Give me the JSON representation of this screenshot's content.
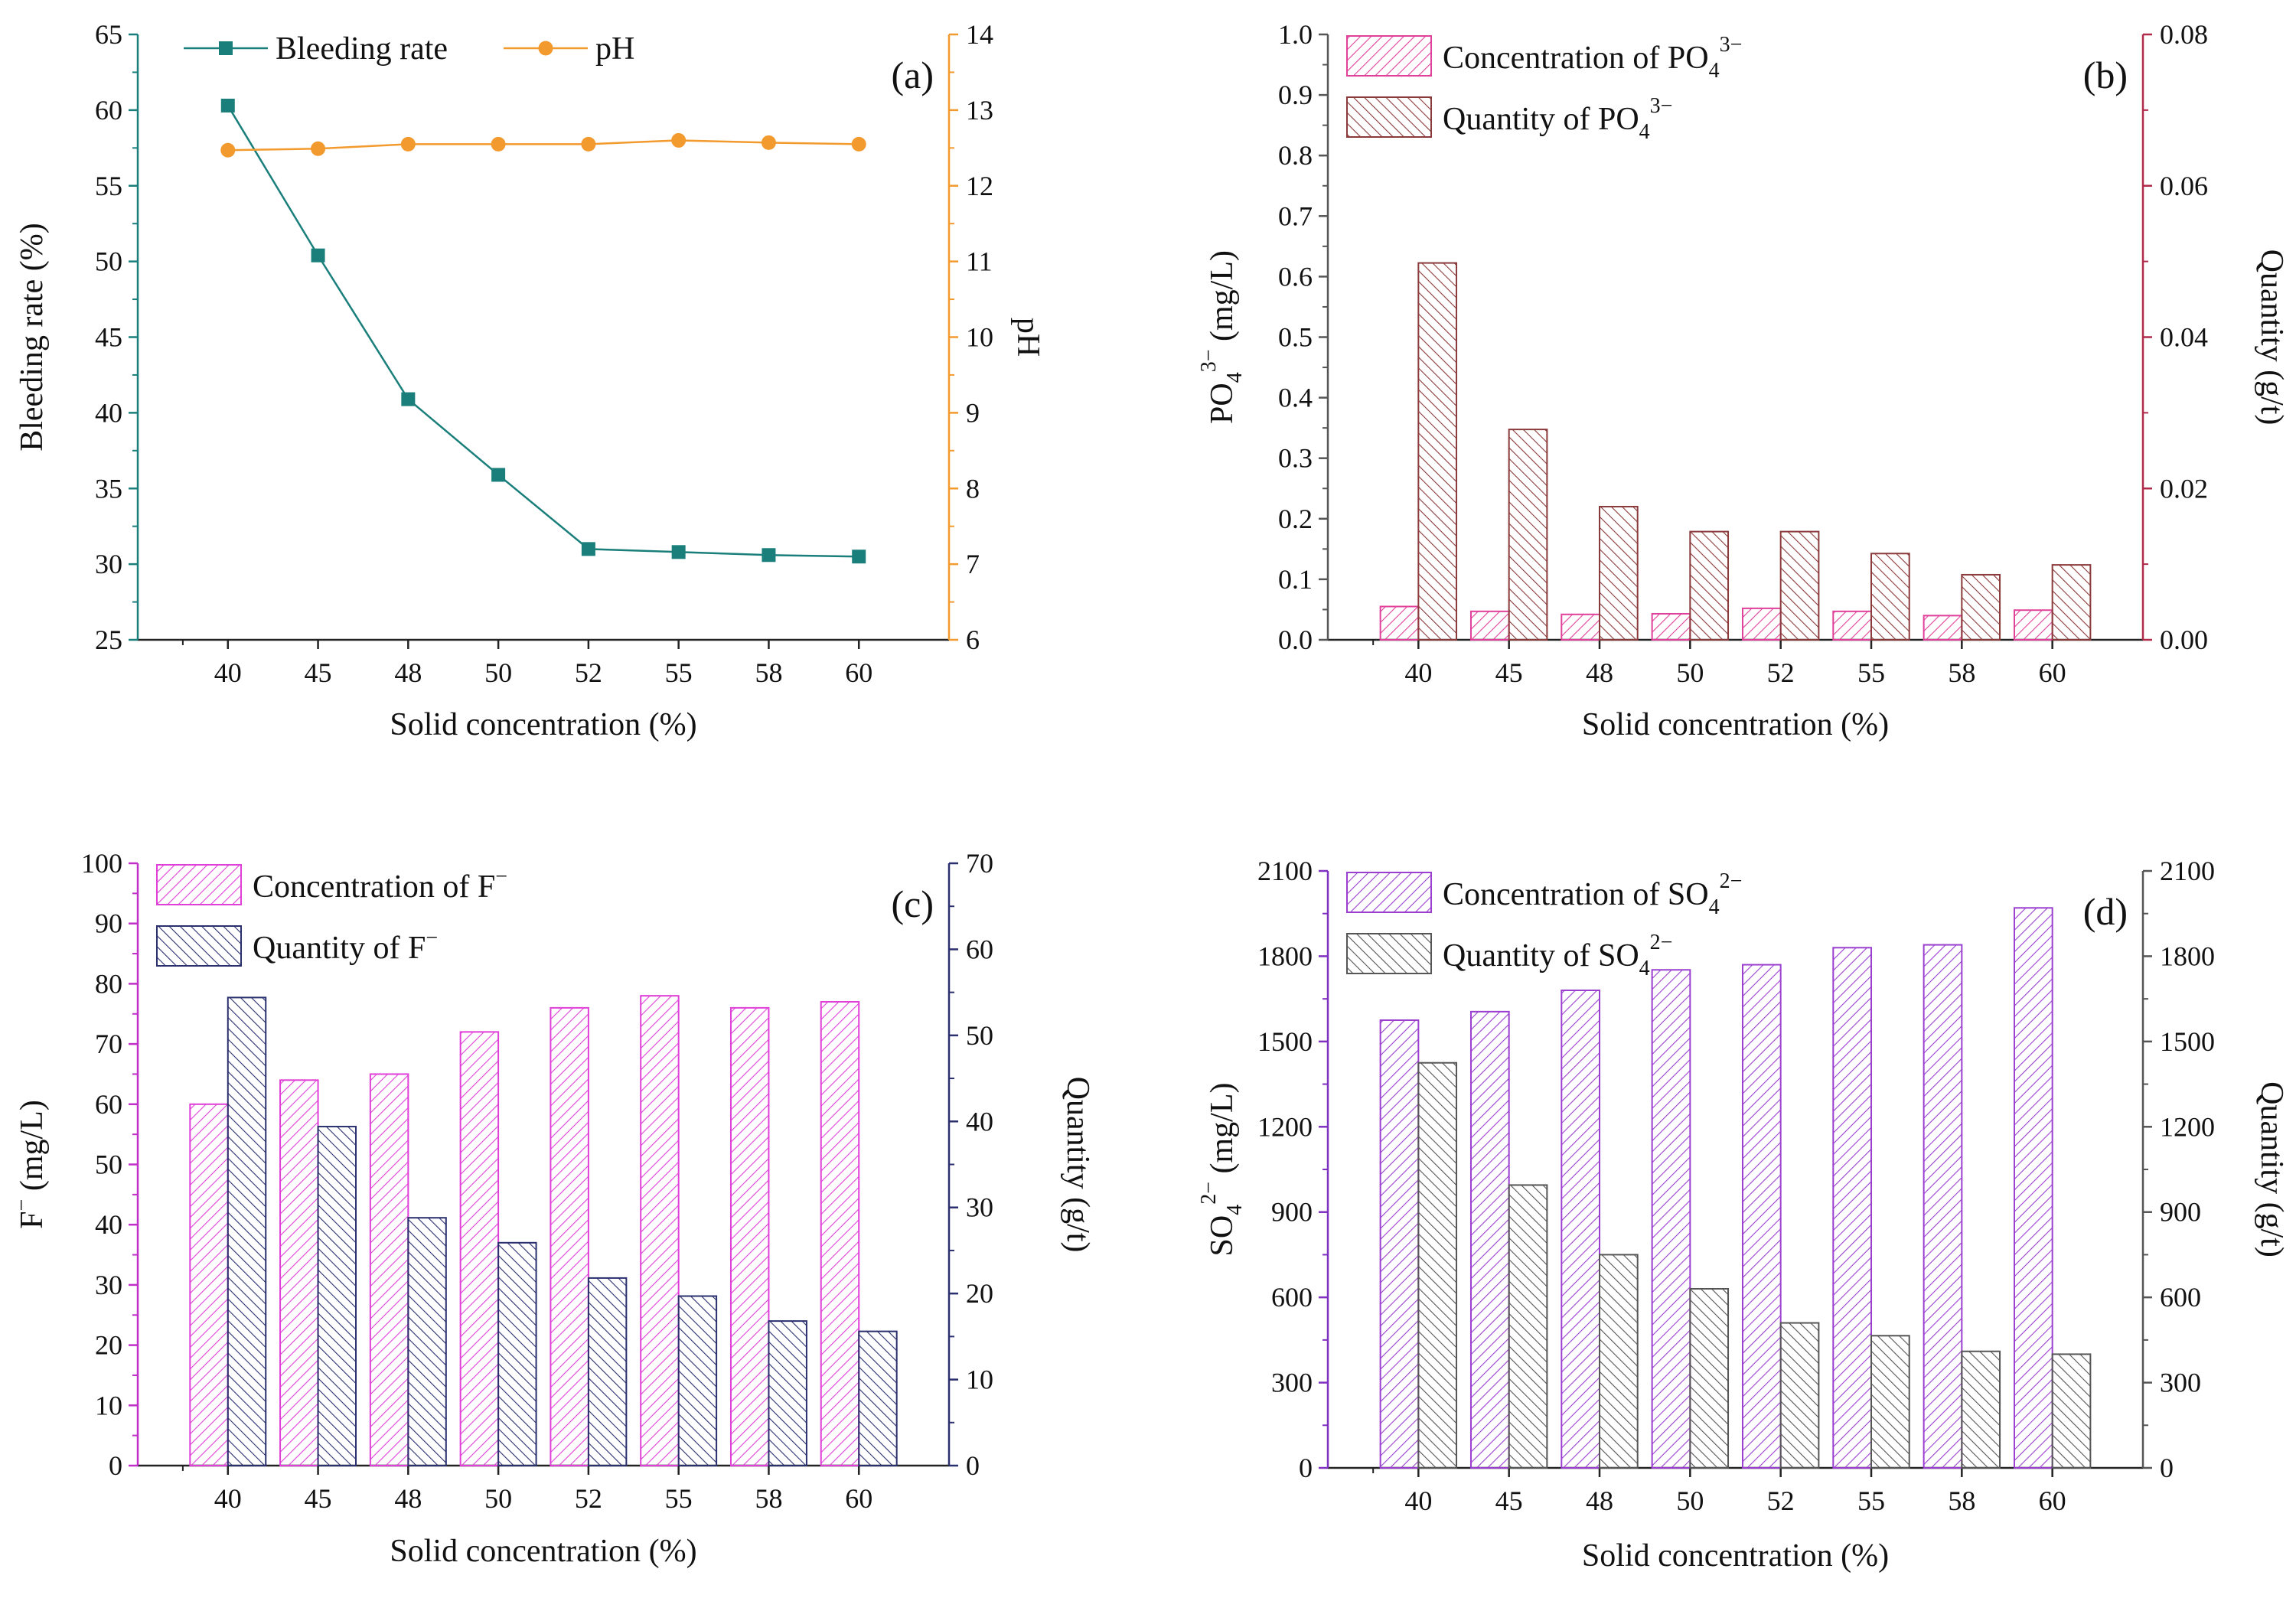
{
  "figure": {
    "x_title": "Solid concentration (%)"
  },
  "chart_data": [
    {
      "panel": "(a)",
      "type": "line",
      "categories": [
        "40",
        "45",
        "48",
        "50",
        "52",
        "55",
        "58",
        "60"
      ],
      "series": [
        {
          "name": "Bleeding rate",
          "axis": "left",
          "color": "#1a7f7a",
          "marker": "square",
          "values": [
            60.3,
            50.4,
            40.9,
            35.9,
            31.0,
            30.8,
            30.6,
            30.5
          ]
        },
        {
          "name": "pH",
          "axis": "right",
          "color": "#f39a2e",
          "marker": "circle",
          "values": [
            12.47,
            12.49,
            12.55,
            12.55,
            12.55,
            12.6,
            12.57,
            12.55
          ]
        }
      ],
      "xlabel": "Solid concentration (%)",
      "ylabel": "Bleeding rate (%)",
      "y2label": "pH",
      "ylim": [
        25,
        65
      ],
      "yticks": [
        "25",
        "30",
        "35",
        "40",
        "45",
        "50",
        "55",
        "60",
        "65"
      ],
      "y2lim": [
        6,
        14
      ],
      "y2ticks": [
        "6",
        "7",
        "8",
        "9",
        "10",
        "11",
        "12",
        "13",
        "14"
      ],
      "legend": "top"
    },
    {
      "panel": "(b)",
      "type": "bar",
      "categories": [
        "40",
        "45",
        "48",
        "50",
        "52",
        "55",
        "58",
        "60"
      ],
      "series": [
        {
          "name": "Concentration of PO4 3−",
          "legend_base": "Concentration of PO",
          "legend_sub": "4",
          "legend_sup": "3−",
          "axis": "left",
          "color": "#e0409a",
          "values": [
            0.055,
            0.047,
            0.042,
            0.043,
            0.052,
            0.047,
            0.04,
            0.049
          ]
        },
        {
          "name": "Quantity of PO4 3−",
          "legend_base": "Quantity of PO",
          "legend_sub": "4",
          "legend_sup": "3−",
          "axis": "right",
          "color": "#8a3a3a",
          "values": [
            0.0498,
            0.0278,
            0.0176,
            0.0143,
            0.0143,
            0.0114,
            0.0086,
            0.0099
          ]
        }
      ],
      "xlabel": "Solid concentration (%)",
      "ylabel": "PO4 3− (mg/L)",
      "ylabel_base": "PO",
      "ylabel_sub": "4",
      "ylabel_sup": "3−",
      "ylabel_unit": " (mg/L)",
      "y2label": "Quantity (g/t)",
      "ylim": [
        0,
        1.0
      ],
      "yticks": [
        "0.0",
        "0.1",
        "0.2",
        "0.3",
        "0.4",
        "0.5",
        "0.6",
        "0.7",
        "0.8",
        "0.9",
        "1.0"
      ],
      "y2lim": [
        0,
        0.08
      ],
      "y2ticks": [
        "0.00",
        "0.02",
        "0.04",
        "0.06",
        "0.08"
      ],
      "legend": "top-left"
    },
    {
      "panel": "(c)",
      "type": "bar",
      "categories": [
        "40",
        "45",
        "48",
        "50",
        "52",
        "55",
        "58",
        "60"
      ],
      "series": [
        {
          "name": "Concentration of F−",
          "legend_base": "Concentration of F",
          "legend_sub": "",
          "legend_sup": "−",
          "axis": "left",
          "color": "#e040d8",
          "values": [
            60,
            64,
            65,
            72,
            76,
            78,
            76,
            77
          ]
        },
        {
          "name": "Quantity of F−",
          "legend_base": "Quantity of F",
          "legend_sub": "",
          "legend_sup": "−",
          "axis": "right",
          "color": "#2a2f6e",
          "values": [
            54.4,
            39.4,
            28.8,
            25.9,
            21.8,
            19.7,
            16.8,
            15.6
          ]
        }
      ],
      "xlabel": "Solid concentration (%)",
      "ylabel": "F− (mg/L)",
      "ylabel_base": "F",
      "ylabel_sub": "",
      "ylabel_sup": "−",
      "ylabel_unit": " (mg/L)",
      "y2label": "Quantity (g/t)",
      "ylim": [
        0,
        100
      ],
      "yticks": [
        "0",
        "10",
        "20",
        "30",
        "40",
        "50",
        "60",
        "70",
        "80",
        "90",
        "100"
      ],
      "y2lim": [
        0,
        70
      ],
      "y2ticks": [
        "0",
        "10",
        "20",
        "30",
        "40",
        "50",
        "60",
        "70"
      ],
      "legend": "top-left"
    },
    {
      "panel": "(d)",
      "type": "bar",
      "categories": [
        "40",
        "45",
        "48",
        "50",
        "52",
        "55",
        "58",
        "60"
      ],
      "series": [
        {
          "name": "Concentration of SO4 2−",
          "legend_base": "Concentration of SO",
          "legend_sub": "4",
          "legend_sup": "2−",
          "axis": "left",
          "color": "#9a3fd0",
          "values": [
            1575,
            1605,
            1680,
            1752,
            1770,
            1830,
            1840,
            1970
          ]
        },
        {
          "name": "Quantity of SO4 2−",
          "legend_base": "Quantity of SO",
          "legend_sub": "4",
          "legend_sup": "2−",
          "axis": "right",
          "color": "#555555",
          "values": [
            1425,
            995,
            750,
            630,
            510,
            465,
            410,
            400
          ]
        }
      ],
      "xlabel": "Solid concentration (%)",
      "ylabel": "SO4 2− (mg/L)",
      "ylabel_base": "SO",
      "ylabel_sub": "4",
      "ylabel_sup": "2−",
      "ylabel_unit": " (mg/L)",
      "y2label": "Quantity (g/t)",
      "ylim": [
        0,
        2100
      ],
      "yticks": [
        "0",
        "300",
        "600",
        "900",
        "1200",
        "1500",
        "1800",
        "2100"
      ],
      "y2lim": [
        0,
        2100
      ],
      "y2ticks": [
        "0",
        "300",
        "600",
        "900",
        "1200",
        "1500",
        "1800",
        "2100"
      ],
      "legend": "top-left"
    }
  ]
}
